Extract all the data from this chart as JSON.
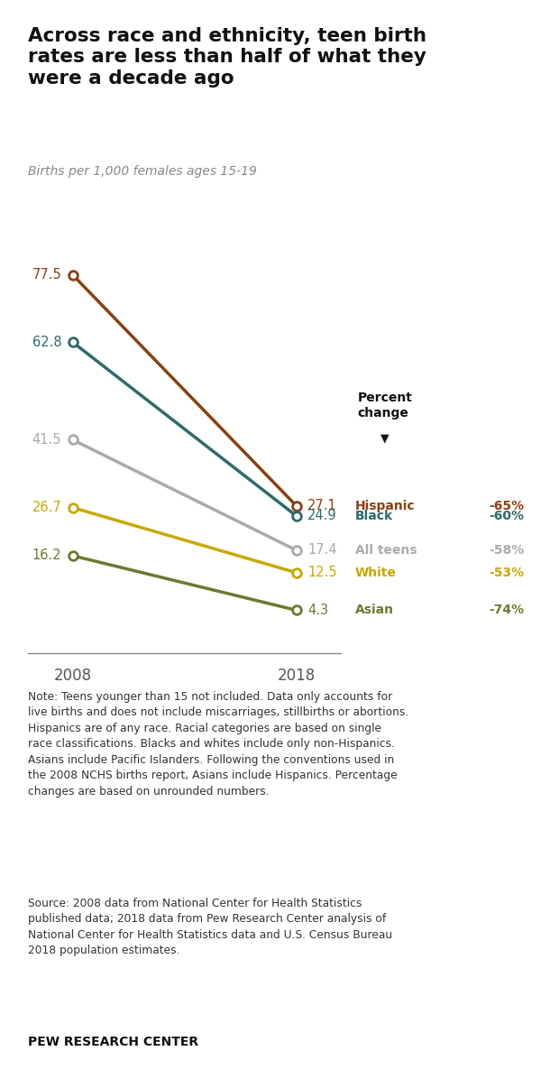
{
  "title": "Across race and ethnicity, teen birth\nrates are less than half of what they\nwere a decade ago",
  "subtitle": "Births per 1,000 females ages 15-19",
  "series": [
    {
      "name": "Hispanic",
      "color": "#8B4010",
      "values": [
        77.5,
        27.1
      ],
      "pct_change": "-65%"
    },
    {
      "name": "Black",
      "color": "#2E6B6B",
      "values": [
        62.8,
        24.9
      ],
      "pct_change": "-60%"
    },
    {
      "name": "All teens",
      "color": "#AAAAAA",
      "values": [
        41.5,
        17.4
      ],
      "pct_change": "-58%"
    },
    {
      "name": "White",
      "color": "#C8A800",
      "values": [
        26.7,
        12.5
      ],
      "pct_change": "-53%"
    },
    {
      "name": "Asian",
      "color": "#6B7A2E",
      "values": [
        16.2,
        4.3
      ],
      "pct_change": "-74%"
    }
  ],
  "years": [
    2008,
    2018
  ],
  "pct_change_header": "Percent\nchange",
  "note": "Note: Teens younger than 15 not included. Data only accounts for\nlive births and does not include miscarriages, stillbirths or abortions.\nHispanics are of any race. Racial categories are based on single\nrace classifications. Blacks and whites include only non-Hispanics.\nAsians include Pacific Islanders. Following the conventions used in\nthe 2008 NCHS births report, Asians include Hispanics. Percentage\nchanges are based on unrounded numbers.",
  "source": "Source: 2008 data from National Center for Health Statistics\npublished data; 2018 data from Pew Research Center analysis of\nNational Center for Health Statistics data and U.S. Census Bureau\n2018 population estimates.",
  "footer": "PEW RESEARCH CENTER",
  "bg_color": "#FFFFFF"
}
